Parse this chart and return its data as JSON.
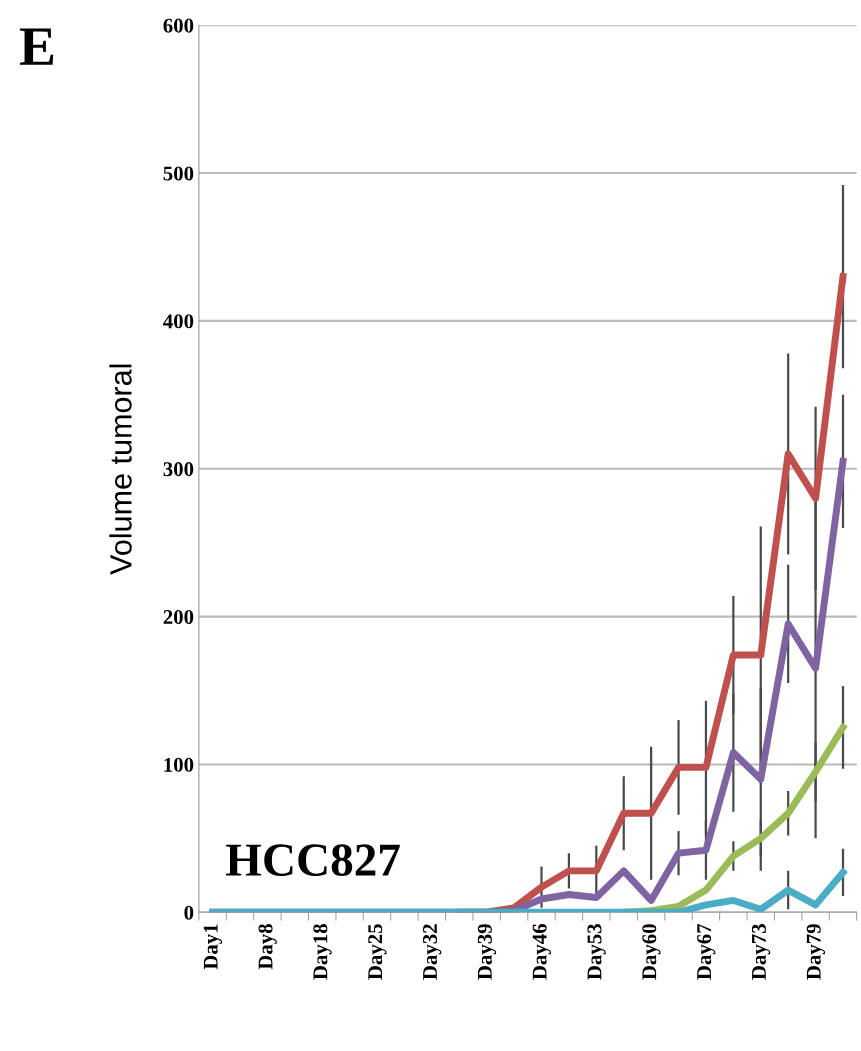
{
  "chart_data": {
    "type": "line",
    "title": "E",
    "ylabel": "Volume tumoral",
    "annotations": [
      "HCC827"
    ],
    "categories": [
      "Day1",
      null,
      "Day8",
      null,
      "Day18",
      null,
      "Day25",
      null,
      "Day32",
      null,
      "Day39",
      null,
      "Day46",
      null,
      "Day53",
      null,
      "Day60",
      null,
      "Day67",
      null,
      "Day73",
      null,
      "Day79",
      null
    ],
    "series": [
      {
        "color": "#c0504d",
        "values": [
          null,
          null,
          null,
          null,
          null,
          null,
          null,
          null,
          null,
          0,
          0,
          3,
          17,
          28,
          28,
          67,
          67,
          98,
          98,
          174,
          174,
          310,
          280,
          430
        ],
        "errors": [
          null,
          null,
          null,
          null,
          null,
          null,
          null,
          null,
          null,
          null,
          null,
          null,
          14,
          12,
          17,
          25,
          45,
          32,
          45,
          40,
          87,
          68,
          62,
          62
        ]
      },
      {
        "color": "#8064a2",
        "values": [
          0,
          0,
          0,
          0,
          0,
          0,
          0,
          0,
          0,
          0,
          0,
          1,
          9,
          12,
          10,
          28,
          8,
          40,
          42,
          108,
          90,
          195,
          165,
          305
        ],
        "errors": [
          null,
          null,
          null,
          null,
          null,
          null,
          null,
          null,
          null,
          null,
          null,
          null,
          null,
          null,
          null,
          null,
          null,
          15,
          20,
          40,
          62,
          40,
          115,
          45
        ]
      },
      {
        "color": "#9bbb59",
        "values": [
          null,
          null,
          null,
          null,
          null,
          null,
          null,
          null,
          null,
          null,
          null,
          null,
          null,
          null,
          null,
          0,
          1,
          4,
          15,
          38,
          50,
          67,
          95,
          125
        ],
        "errors": [
          null,
          null,
          null,
          null,
          null,
          null,
          null,
          null,
          null,
          null,
          null,
          null,
          null,
          null,
          null,
          null,
          null,
          null,
          null,
          10,
          12,
          15,
          20,
          28
        ]
      },
      {
        "color": "#4bacc6",
        "values": [
          0,
          0,
          0,
          0,
          0,
          0,
          0,
          0,
          0,
          0,
          0,
          0,
          0,
          0,
          0,
          0,
          0,
          0,
          5,
          8,
          2,
          15,
          5,
          27
        ],
        "errors": [
          null,
          null,
          null,
          null,
          null,
          null,
          null,
          null,
          null,
          null,
          null,
          null,
          null,
          null,
          null,
          null,
          null,
          null,
          null,
          null,
          null,
          13,
          null,
          16
        ]
      }
    ],
    "ylim": [
      0,
      600
    ],
    "yticks": [
      0,
      100,
      200,
      300,
      400,
      500,
      600
    ],
    "grid": "y",
    "legend": false,
    "marker": "none",
    "line_style": "solid"
  }
}
